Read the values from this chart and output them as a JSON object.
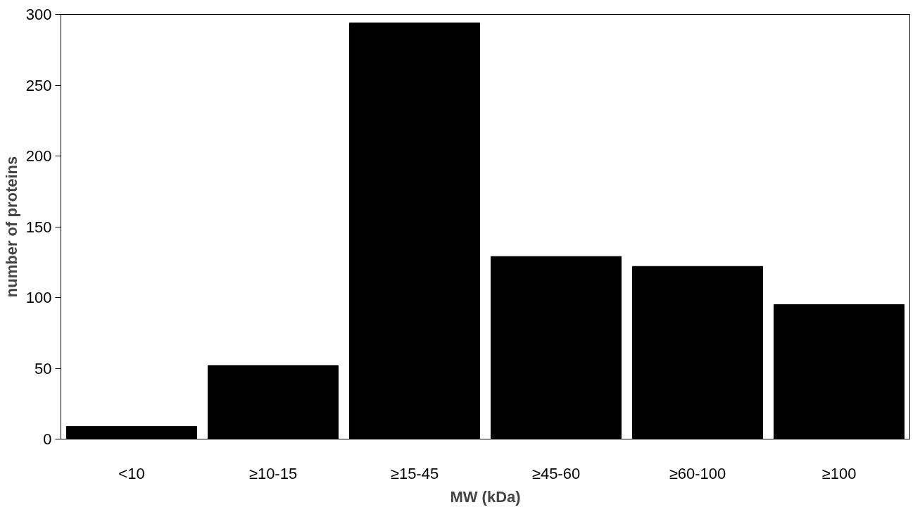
{
  "chart_data": {
    "type": "bar",
    "xlabel": "MW (kDa)",
    "ylabel": "number of proteins",
    "categories": [
      "<10",
      "≥10-15",
      "≥15-45",
      "≥45-60",
      "≥60-100",
      "≥100"
    ],
    "values": [
      9,
      52,
      294,
      129,
      122,
      95
    ],
    "color": "#000000",
    "ylim": [
      0,
      300
    ],
    "yticks": [
      0,
      50,
      100,
      150,
      200,
      250,
      300
    ],
    "grid": false
  }
}
